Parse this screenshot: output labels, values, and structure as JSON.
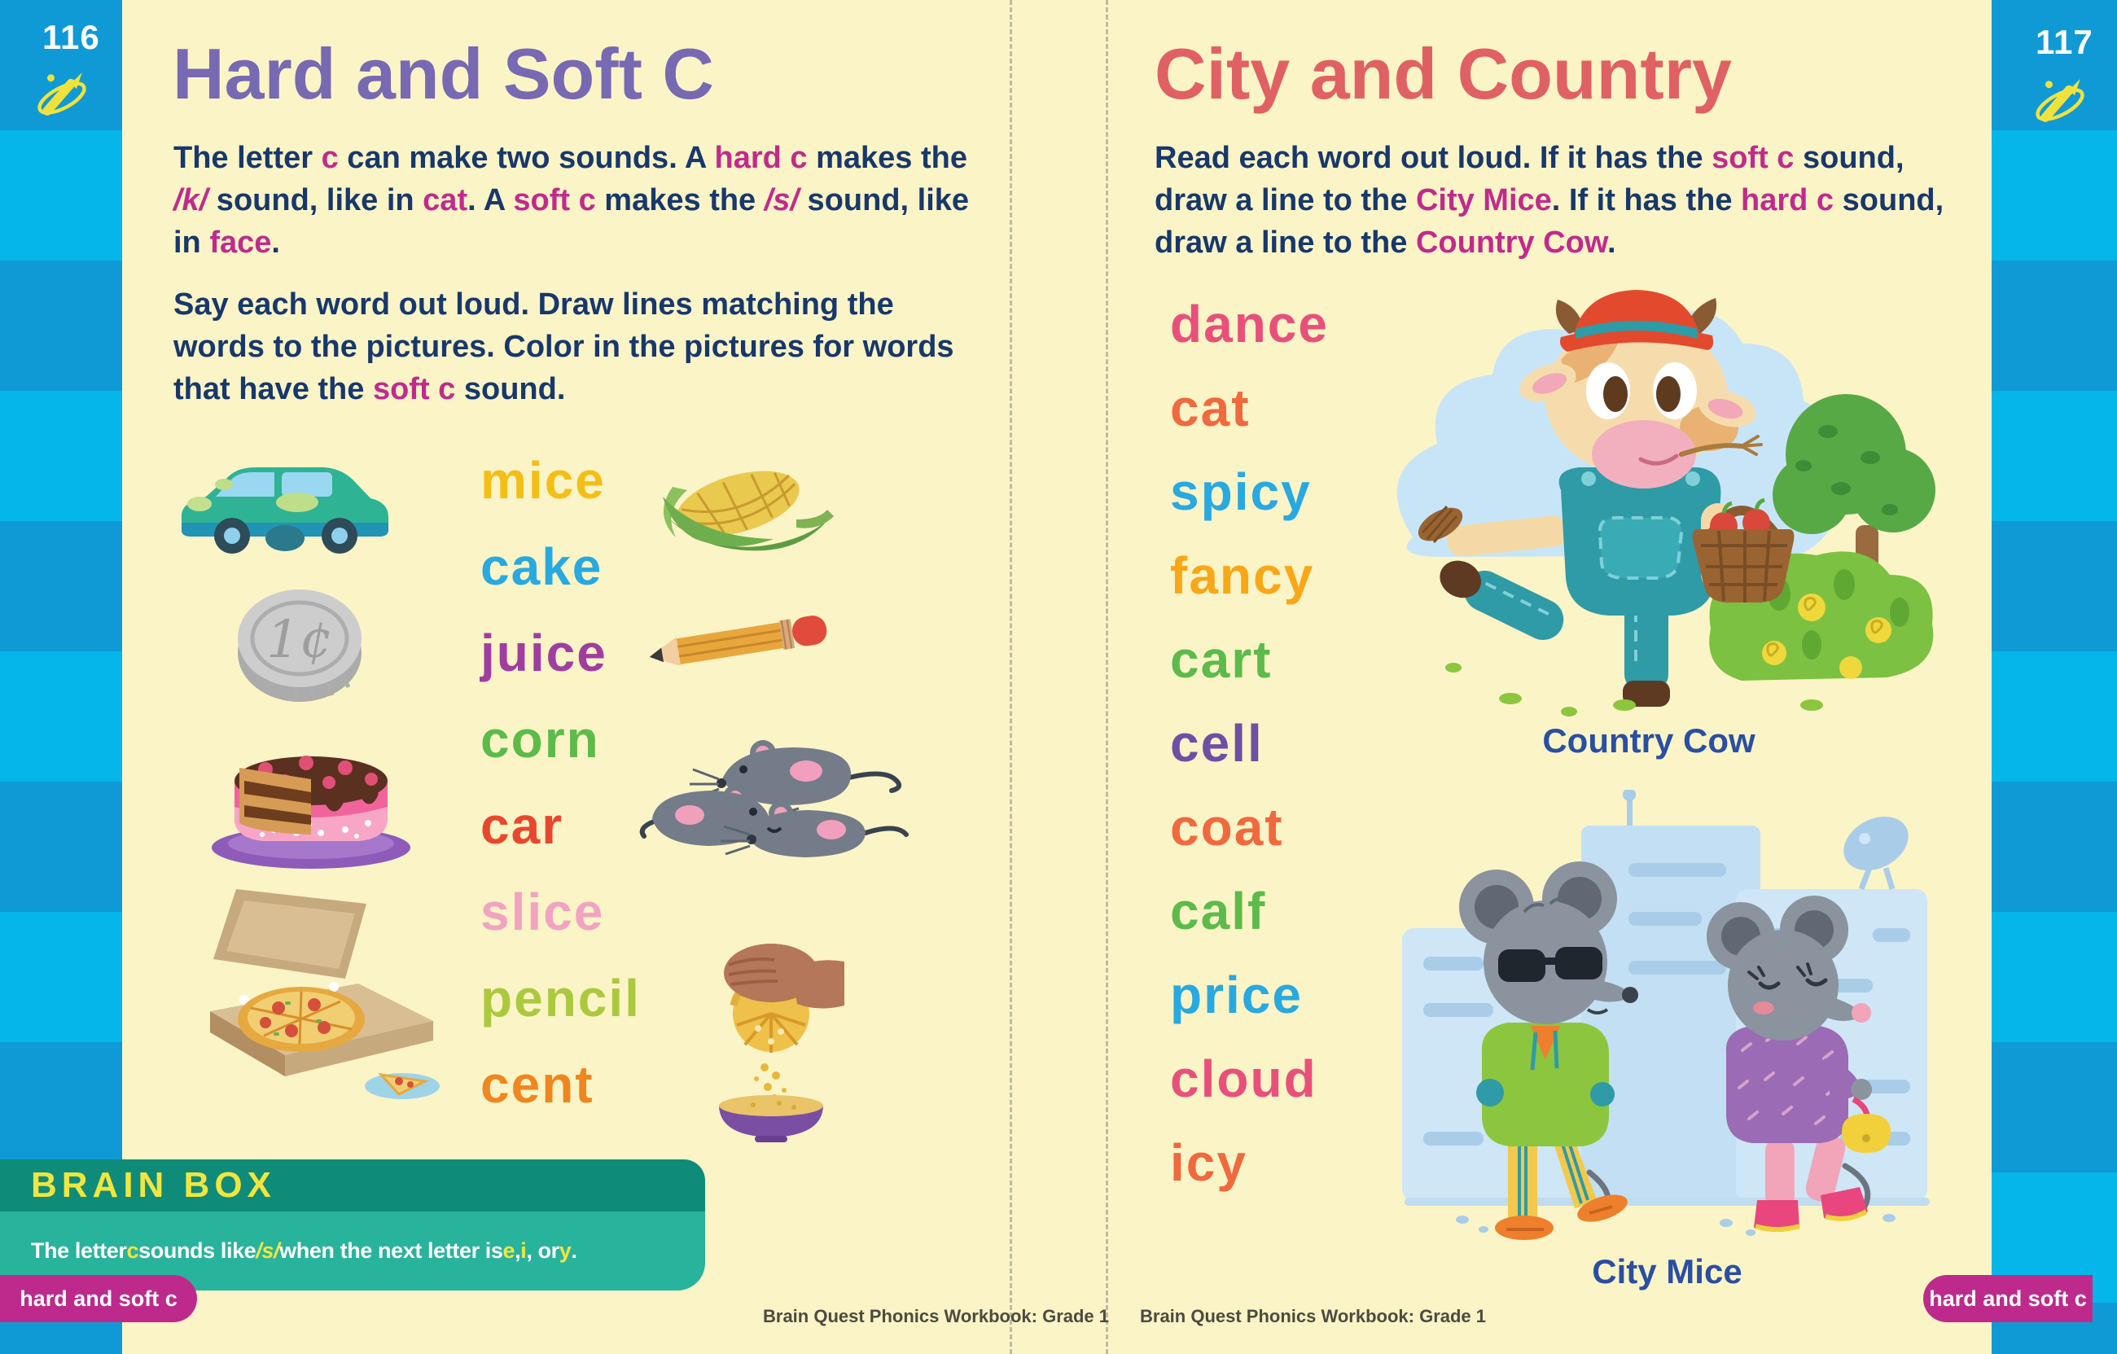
{
  "colors": {
    "page_background": "#FBF4C6",
    "bar_blue_dark": "#0F9AD6",
    "bar_blue_light": "#04B6EA",
    "title_purple": "#7769B2",
    "title_coral": "#E06164",
    "body_navy": "#17386C",
    "accent_magenta": "#C12A8C",
    "brainbox_teal_dark": "#0E8C79",
    "brainbox_teal_light": "#28B39C",
    "brainbox_yellow": "#F2E53E",
    "caption_blue": "#2A4FA2",
    "tab_magenta": "#BE2A8C"
  },
  "left_bar": {
    "page_number": "116"
  },
  "right_bar": {
    "page_number": "117"
  },
  "left_page": {
    "title": "Hard and Soft C",
    "intro_segments": [
      {
        "t": "The letter "
      },
      {
        "t": "c",
        "s": "m"
      },
      {
        "t": " can make two sounds. A "
      },
      {
        "t": "hard c",
        "s": "m"
      },
      {
        "t": " makes the "
      },
      {
        "t": "/k/",
        "s": "mi"
      },
      {
        "t": " sound, like in "
      },
      {
        "t": "cat",
        "s": "m"
      },
      {
        "t": ". A "
      },
      {
        "t": "soft c",
        "s": "m"
      },
      {
        "t": " makes the "
      },
      {
        "t": "/s/",
        "s": "mi"
      },
      {
        "t": " sound, like in "
      },
      {
        "t": "face",
        "s": "m"
      },
      {
        "t": "."
      }
    ],
    "instruction_segments": [
      {
        "t": "Say each word out loud. Draw lines matching the words to the pictures. Color in the pictures for words that have the "
      },
      {
        "t": "soft c",
        "s": "m"
      },
      {
        "t": " sound."
      }
    ],
    "words": [
      {
        "label": "mice",
        "color": "#F5BE17"
      },
      {
        "label": "cake",
        "color": "#28A9E0"
      },
      {
        "label": "juice",
        "color": "#A03DA0"
      },
      {
        "label": "corn",
        "color": "#5CBB4B"
      },
      {
        "label": "car",
        "color": "#E9472D"
      },
      {
        "label": "slice",
        "color": "#F2A3C2"
      },
      {
        "label": "pencil",
        "color": "#ABC93F"
      },
      {
        "label": "cent",
        "color": "#F0861F"
      }
    ],
    "pictures_left": [
      "car-image",
      "cent-coin-image",
      "cake-image",
      "pizza-slice-image"
    ],
    "pictures_right": [
      "corn-image",
      "pencil-image",
      "mice-image",
      "juice-image"
    ],
    "brain_box": {
      "title": "BRAIN BOX",
      "body_segments": [
        {
          "t": "The letter "
        },
        {
          "t": "c",
          "s": "y"
        },
        {
          "t": " sounds like "
        },
        {
          "t": "/s/",
          "s": "yi"
        },
        {
          "t": " when the next letter is "
        },
        {
          "t": "e",
          "s": "y"
        },
        {
          "t": ", "
        },
        {
          "t": "i",
          "s": "y"
        },
        {
          "t": ", or "
        },
        {
          "t": "y",
          "s": "y"
        },
        {
          "t": "."
        }
      ]
    },
    "corner_tab": "hard and soft c",
    "footer": "Brain Quest Phonics Workbook: Grade 1"
  },
  "right_page": {
    "title": "City and Country",
    "instruction_segments": [
      {
        "t": "Read each word out loud. If it has the "
      },
      {
        "t": "soft c",
        "s": "m"
      },
      {
        "t": " sound, draw a line to the "
      },
      {
        "t": "City Mice",
        "s": "m"
      },
      {
        "t": ". If it has the "
      },
      {
        "t": "hard c",
        "s": "m"
      },
      {
        "t": " sound, draw a line to the "
      },
      {
        "t": "Country Cow",
        "s": "m"
      },
      {
        "t": "."
      }
    ],
    "words": [
      {
        "label": "dance",
        "color": "#E8507B"
      },
      {
        "label": "cat",
        "color": "#F0693F"
      },
      {
        "label": "spicy",
        "color": "#28A9E0"
      },
      {
        "label": "fancy",
        "color": "#F7A717"
      },
      {
        "label": "cart",
        "color": "#5CBB4B"
      },
      {
        "label": "cell",
        "color": "#6E4FA4"
      },
      {
        "label": "coat",
        "color": "#F0693F"
      },
      {
        "label": "calf",
        "color": "#5CBB4B"
      },
      {
        "label": "price",
        "color": "#28A9E0"
      },
      {
        "label": "cloud",
        "color": "#E8507B"
      },
      {
        "label": "icy",
        "color": "#F0693F"
      }
    ],
    "cow_caption": "Country Cow",
    "mice_caption": "City Mice",
    "corner_tab": "hard and soft c",
    "footer": "Brain Quest Phonics Workbook: Grade 1"
  }
}
